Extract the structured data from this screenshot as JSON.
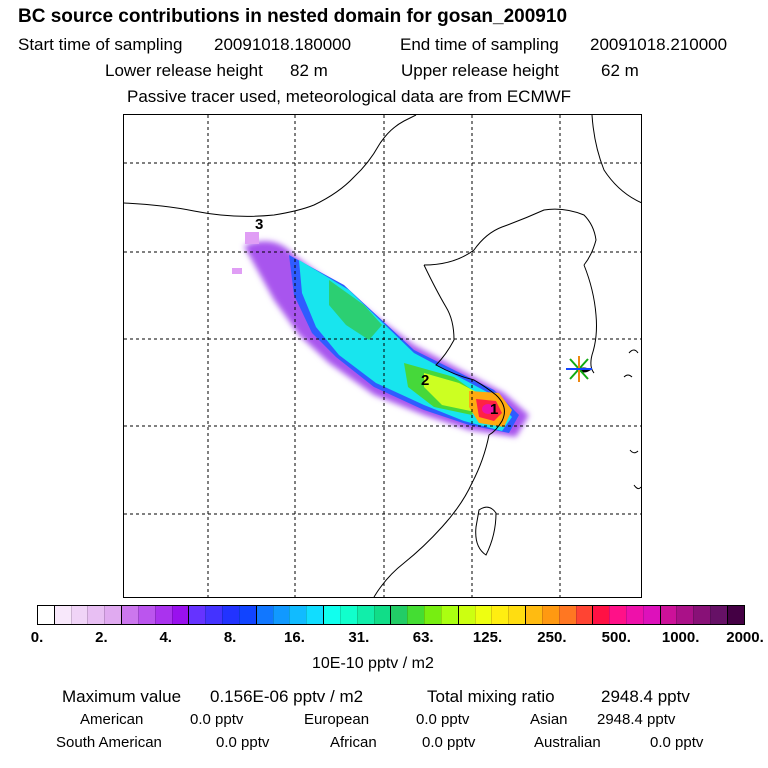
{
  "title": "BC  source contributions in nested domain for gosan_200910",
  "sampling": {
    "start_label": "Start time of sampling",
    "start_value": "20091018.180000",
    "end_label": "End time of sampling",
    "end_value": "20091018.210000"
  },
  "release": {
    "lower_label": "Lower release height",
    "lower_value": "82 m",
    "upper_label": "Upper release height",
    "upper_value": "62 m"
  },
  "note": "Passive tracer used, meteorological data are from ECMWF",
  "map": {
    "source_markers": [
      "1",
      "2",
      "3"
    ],
    "receptor_icon": "star-receptor-icon"
  },
  "colorbar": {
    "unit_label": "10E-10 pptv / m2",
    "tick_labels": [
      "0.",
      "2.",
      "4.",
      "8.",
      "16.",
      "31.",
      "63.",
      "125.",
      "250.",
      "500.",
      "1000.",
      "2000."
    ],
    "colors": [
      "#ffffff",
      "#f8e8fb",
      "#f0d4f7",
      "#e8bff3",
      "#e0aaf0",
      "#cc77ee",
      "#bb55ee",
      "#aa33ee",
      "#9911ee",
      "#6633ff",
      "#4433ff",
      "#2233ff",
      "#1144ff",
      "#1177ff",
      "#1199ff",
      "#11bbff",
      "#11ddff",
      "#11ffee",
      "#11ffcc",
      "#11eeaa",
      "#11dd88",
      "#22cc66",
      "#44dd33",
      "#77ee11",
      "#aaff11",
      "#ccff11",
      "#eeff11",
      "#ffee11",
      "#ffdd11",
      "#ffbb11",
      "#ff9911",
      "#ff7722",
      "#ff4433",
      "#ff1144",
      "#ff1188",
      "#ee11aa",
      "#dd11bb",
      "#cc1199",
      "#aa1188",
      "#881177",
      "#661166",
      "#440044"
    ]
  },
  "stats": {
    "max_label": "Maximum value",
    "max_value": "0.156E-06 pptv / m2",
    "total_label": "Total mixing ratio",
    "total_value": "2948.4 pptv"
  },
  "regions": [
    {
      "name": "American",
      "value": "0.0 pptv"
    },
    {
      "name": "European",
      "value": "0.0 pptv"
    },
    {
      "name": "Asian",
      "value": "2948.4 pptv"
    },
    {
      "name": "South American",
      "value": "0.0 pptv"
    },
    {
      "name": "African",
      "value": "0.0 pptv"
    },
    {
      "name": "Australian",
      "value": "0.0 pptv"
    }
  ]
}
